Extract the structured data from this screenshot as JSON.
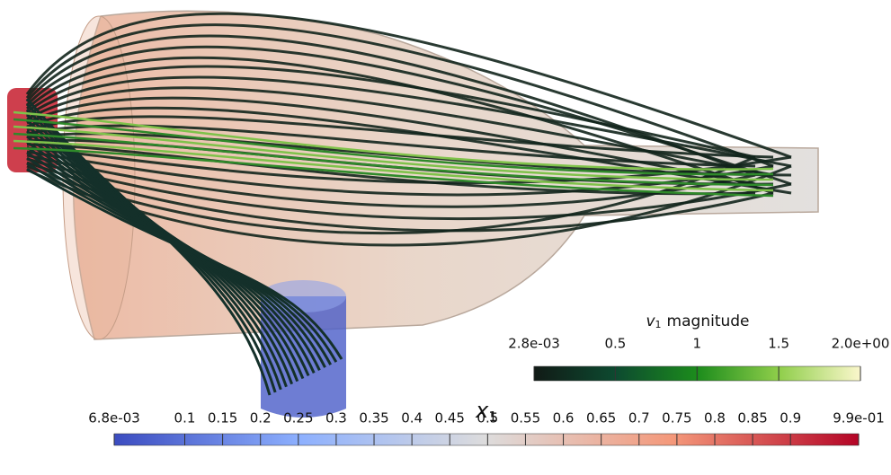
{
  "colorbars": [
    {
      "symbol": "v",
      "subscript": "1",
      "title_rest": "magnitude",
      "ticks": [
        {
          "value": 0.0028,
          "label": "2.8e-03"
        },
        0.5,
        1,
        1.5,
        {
          "value": 2,
          "label": "2.0e+00"
        }
      ]
    },
    {
      "symbol": "x",
      "subscript": "1",
      "ticks": [
        {
          "value": 0.0068,
          "label": "6.8e-03"
        },
        0.1,
        0.15,
        0.2,
        0.25,
        0.3,
        0.35,
        0.4,
        0.45,
        0.5,
        0.55,
        0.6,
        0.65,
        0.7,
        0.75,
        0.8,
        0.85,
        0.9,
        {
          "value": 0.99,
          "label": "9.9e-01"
        }
      ]
    }
  ]
}
